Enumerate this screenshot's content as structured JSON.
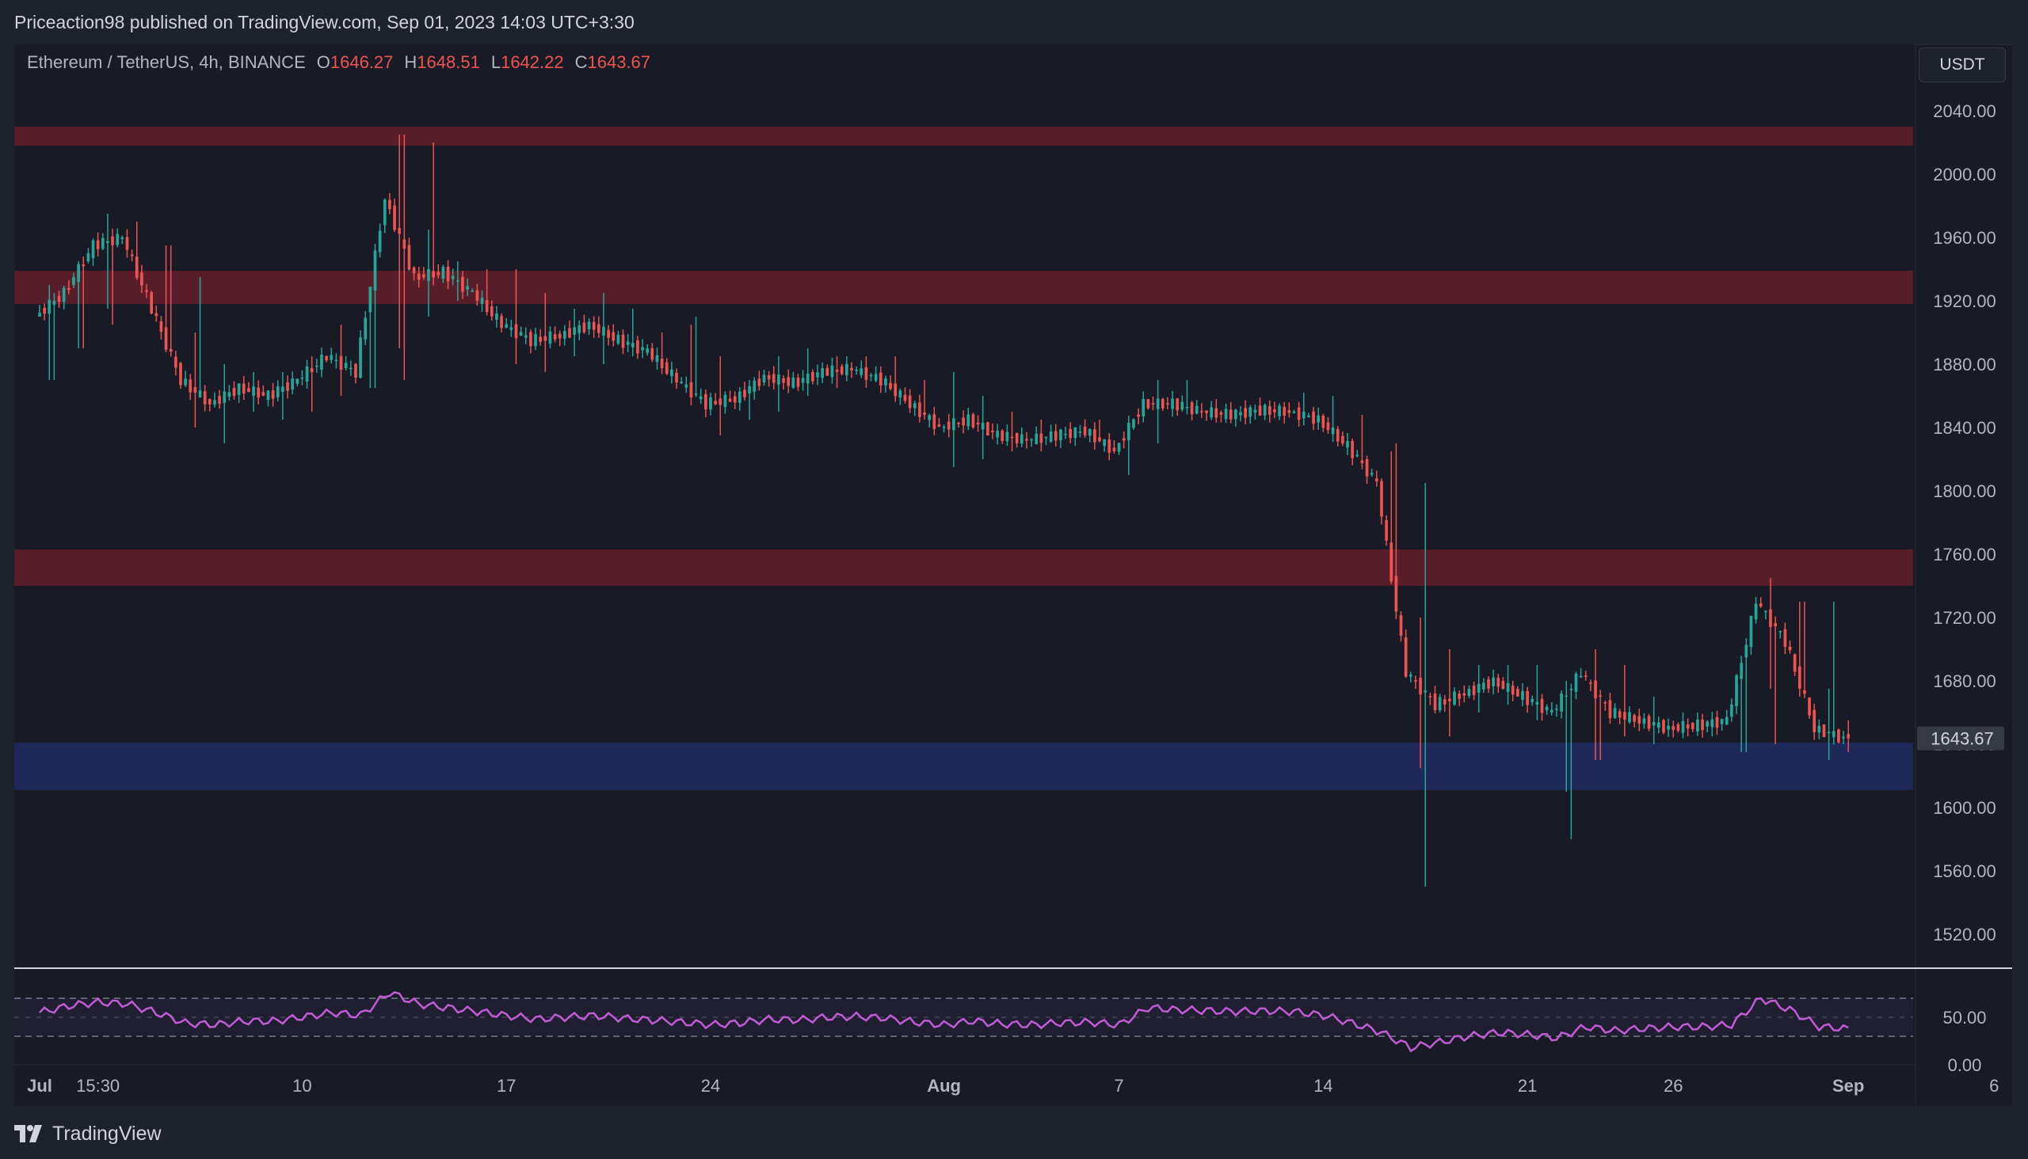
{
  "header": {
    "published": "Priceaction98 published on TradingView.com, Sep 01, 2023 14:03 UTC+3:30"
  },
  "legend": {
    "symbol": "Ethereum / TetherUS, 4h, BINANCE",
    "o_label": "O",
    "o_value": "1646.27",
    "h_label": "H",
    "h_value": "1648.51",
    "l_label": "L",
    "l_value": "1642.22",
    "c_label": "C",
    "c_value": "1643.67"
  },
  "currency": "USDT",
  "footer": {
    "brand": "TradingView",
    "logo_icon": "tradingview-logo-icon"
  },
  "colors": {
    "up": "#26a69a",
    "down": "#ef5350",
    "resistance_zone": "#5b1f2a",
    "support_zone": "#1f2a5c",
    "rsi_line": "#c15bd6",
    "background": "#181b25"
  },
  "chart_data": [
    {
      "type": "candlestick",
      "title": "",
      "timeframe": "4h",
      "x_tick_labels": [
        "Jul",
        "15:30",
        "10",
        "17",
        "24",
        "Aug",
        "7",
        "14",
        "21",
        "26",
        "Sep",
        "6"
      ],
      "x_tick_dates": [
        "2023-07-01",
        "2023-07-03",
        "2023-07-10",
        "2023-07-17",
        "2023-07-24",
        "2023-08-01",
        "2023-08-07",
        "2023-08-14",
        "2023-08-21",
        "2023-08-26",
        "2023-09-01",
        "2023-09-06"
      ],
      "y_tick_labels": [
        "2040.00",
        "2000.00",
        "1960.00",
        "1920.00",
        "1880.00",
        "1840.00",
        "1800.00",
        "1760.00",
        "1720.00",
        "1680.00",
        "1640.00",
        "1600.00",
        "1560.00",
        "1520.00"
      ],
      "ylim": [
        1500,
        2060
      ],
      "last_price_label": "1643.67",
      "last_price": 1643.67,
      "zones": [
        {
          "kind": "resistance",
          "low": 2018,
          "high": 2030
        },
        {
          "kind": "resistance",
          "low": 1918,
          "high": 1939
        },
        {
          "kind": "resistance",
          "low": 1740,
          "high": 1763
        },
        {
          "kind": "support",
          "low": 1611,
          "high": 1641
        }
      ],
      "series": [
        {
          "values": [
            {
              "t": "2023-07-01",
              "close": 1910,
              "high": 1930,
              "low": 1870
            },
            {
              "t": "2023-07-02",
              "close": 1925,
              "high": 1945,
              "low": 1890
            },
            {
              "t": "2023-07-03",
              "close": 1955,
              "high": 1975,
              "low": 1905
            },
            {
              "t": "2023-07-04",
              "close": 1960,
              "high": 1970,
              "low": 1935
            },
            {
              "t": "2023-07-05",
              "close": 1915,
              "high": 1955,
              "low": 1890
            },
            {
              "t": "2023-07-06",
              "close": 1870,
              "high": 1935,
              "low": 1840
            },
            {
              "t": "2023-07-07",
              "close": 1855,
              "high": 1880,
              "low": 1830
            },
            {
              "t": "2023-07-08",
              "close": 1865,
              "high": 1875,
              "low": 1850
            },
            {
              "t": "2023-07-09",
              "close": 1860,
              "high": 1875,
              "low": 1845
            },
            {
              "t": "2023-07-10",
              "close": 1870,
              "high": 1885,
              "low": 1850
            },
            {
              "t": "2023-07-11",
              "close": 1885,
              "high": 1905,
              "low": 1860
            },
            {
              "t": "2023-07-12",
              "close": 1875,
              "high": 1895,
              "low": 1865
            },
            {
              "t": "2023-07-13",
              "close": 1985,
              "high": 2025,
              "low": 1870
            },
            {
              "t": "2023-07-14",
              "close": 1935,
              "high": 2020,
              "low": 1910
            },
            {
              "t": "2023-07-15",
              "close": 1938,
              "high": 1945,
              "low": 1920
            },
            {
              "t": "2023-07-16",
              "close": 1925,
              "high": 1940,
              "low": 1915
            },
            {
              "t": "2023-07-17",
              "close": 1905,
              "high": 1940,
              "low": 1880
            },
            {
              "t": "2023-07-18",
              "close": 1895,
              "high": 1925,
              "low": 1875
            },
            {
              "t": "2023-07-19",
              "close": 1898,
              "high": 1915,
              "low": 1885
            },
            {
              "t": "2023-07-20",
              "close": 1905,
              "high": 1925,
              "low": 1880
            },
            {
              "t": "2023-07-21",
              "close": 1895,
              "high": 1915,
              "low": 1885
            },
            {
              "t": "2023-07-22",
              "close": 1888,
              "high": 1900,
              "low": 1880
            },
            {
              "t": "2023-07-23",
              "close": 1870,
              "high": 1910,
              "low": 1855
            },
            {
              "t": "2023-07-24",
              "close": 1855,
              "high": 1885,
              "low": 1835
            },
            {
              "t": "2023-07-25",
              "close": 1858,
              "high": 1870,
              "low": 1845
            },
            {
              "t": "2023-07-26",
              "close": 1872,
              "high": 1885,
              "low": 1850
            },
            {
              "t": "2023-07-27",
              "close": 1868,
              "high": 1890,
              "low": 1860
            },
            {
              "t": "2023-07-28",
              "close": 1875,
              "high": 1885,
              "low": 1865
            },
            {
              "t": "2023-07-29",
              "close": 1877,
              "high": 1885,
              "low": 1870
            },
            {
              "t": "2023-07-30",
              "close": 1870,
              "high": 1885,
              "low": 1860
            },
            {
              "t": "2023-07-31",
              "close": 1855,
              "high": 1870,
              "low": 1845
            },
            {
              "t": "2023-08-01",
              "close": 1840,
              "high": 1875,
              "low": 1815
            },
            {
              "t": "2023-08-02",
              "close": 1845,
              "high": 1860,
              "low": 1820
            },
            {
              "t": "2023-08-03",
              "close": 1835,
              "high": 1850,
              "low": 1825
            },
            {
              "t": "2023-08-04",
              "close": 1832,
              "high": 1845,
              "low": 1825
            },
            {
              "t": "2023-08-05",
              "close": 1835,
              "high": 1840,
              "low": 1830
            },
            {
              "t": "2023-08-06",
              "close": 1838,
              "high": 1845,
              "low": 1832
            },
            {
              "t": "2023-08-07",
              "close": 1825,
              "high": 1845,
              "low": 1810
            },
            {
              "t": "2023-08-08",
              "close": 1855,
              "high": 1870,
              "low": 1820
            },
            {
              "t": "2023-08-09",
              "close": 1855,
              "high": 1870,
              "low": 1850
            },
            {
              "t": "2023-08-10",
              "close": 1850,
              "high": 1858,
              "low": 1845
            },
            {
              "t": "2023-08-11",
              "close": 1848,
              "high": 1855,
              "low": 1842
            },
            {
              "t": "2023-08-12",
              "close": 1851,
              "high": 1856,
              "low": 1846
            },
            {
              "t": "2023-08-13",
              "close": 1850,
              "high": 1862,
              "low": 1842
            },
            {
              "t": "2023-08-14",
              "close": 1845,
              "high": 1860,
              "low": 1838
            },
            {
              "t": "2023-08-15",
              "close": 1828,
              "high": 1848,
              "low": 1818
            },
            {
              "t": "2023-08-16",
              "close": 1805,
              "high": 1830,
              "low": 1785
            },
            {
              "t": "2023-08-17",
              "close": 1685,
              "high": 1805,
              "low": 1550
            },
            {
              "t": "2023-08-18",
              "close": 1665,
              "high": 1700,
              "low": 1645
            },
            {
              "t": "2023-08-19",
              "close": 1672,
              "high": 1690,
              "low": 1660
            },
            {
              "t": "2023-08-20",
              "close": 1680,
              "high": 1690,
              "low": 1665
            },
            {
              "t": "2023-08-21",
              "close": 1670,
              "high": 1690,
              "low": 1655
            },
            {
              "t": "2023-08-22",
              "close": 1660,
              "high": 1680,
              "low": 1580
            },
            {
              "t": "2023-08-23",
              "close": 1685,
              "high": 1700,
              "low": 1630
            },
            {
              "t": "2023-08-24",
              "close": 1660,
              "high": 1690,
              "low": 1645
            },
            {
              "t": "2023-08-25",
              "close": 1655,
              "high": 1670,
              "low": 1640
            },
            {
              "t": "2023-08-26",
              "close": 1650,
              "high": 1660,
              "low": 1645
            },
            {
              "t": "2023-08-27",
              "close": 1652,
              "high": 1658,
              "low": 1645
            },
            {
              "t": "2023-08-28",
              "close": 1655,
              "high": 1665,
              "low": 1635
            },
            {
              "t": "2023-08-29",
              "close": 1730,
              "high": 1745,
              "low": 1640
            },
            {
              "t": "2023-08-30",
              "close": 1705,
              "high": 1730,
              "low": 1695
            },
            {
              "t": "2023-08-31",
              "close": 1650,
              "high": 1730,
              "low": 1630
            },
            {
              "t": "2023-09-01",
              "close": 1643.67,
              "high": 1655,
              "low": 1635
            }
          ]
        }
      ]
    },
    {
      "type": "line",
      "title": "",
      "ylim": [
        0,
        100
      ],
      "y_tick_labels": [
        "50.00",
        "0.00"
      ],
      "bands": [
        70,
        30
      ],
      "x_tick_dates": [
        "2023-07-01",
        "2023-07-02",
        "2023-07-03",
        "2023-07-04",
        "2023-07-05",
        "2023-07-06",
        "2023-07-07",
        "2023-07-08",
        "2023-07-09",
        "2023-07-10",
        "2023-07-11",
        "2023-07-12",
        "2023-07-13",
        "2023-07-14",
        "2023-07-15",
        "2023-07-16",
        "2023-07-17",
        "2023-07-18",
        "2023-07-19",
        "2023-07-20",
        "2023-07-21",
        "2023-07-22",
        "2023-07-23",
        "2023-07-24",
        "2023-07-25",
        "2023-07-26",
        "2023-07-27",
        "2023-07-28",
        "2023-07-29",
        "2023-07-30",
        "2023-07-31",
        "2023-08-01",
        "2023-08-02",
        "2023-08-03",
        "2023-08-04",
        "2023-08-05",
        "2023-08-06",
        "2023-08-07",
        "2023-08-08",
        "2023-08-09",
        "2023-08-10",
        "2023-08-11",
        "2023-08-12",
        "2023-08-13",
        "2023-08-14",
        "2023-08-15",
        "2023-08-16",
        "2023-08-17",
        "2023-08-18",
        "2023-08-19",
        "2023-08-20",
        "2023-08-21",
        "2023-08-22",
        "2023-08-23",
        "2023-08-24",
        "2023-08-25",
        "2023-08-26",
        "2023-08-27",
        "2023-08-28",
        "2023-08-29",
        "2023-08-30",
        "2023-08-31",
        "2023-09-01"
      ],
      "values": [
        55,
        62,
        66,
        64,
        55,
        44,
        42,
        46,
        46,
        50,
        55,
        52,
        76,
        64,
        60,
        56,
        52,
        48,
        50,
        52,
        49,
        47,
        45,
        42,
        44,
        48,
        47,
        50,
        51,
        49,
        45,
        42,
        46,
        43,
        42,
        44,
        45,
        42,
        60,
        58,
        57,
        56,
        57,
        56,
        52,
        44,
        34,
        18,
        24,
        30,
        34,
        32,
        28,
        40,
        36,
        38,
        40,
        40,
        42,
        70,
        58,
        40,
        38
      ]
    }
  ]
}
